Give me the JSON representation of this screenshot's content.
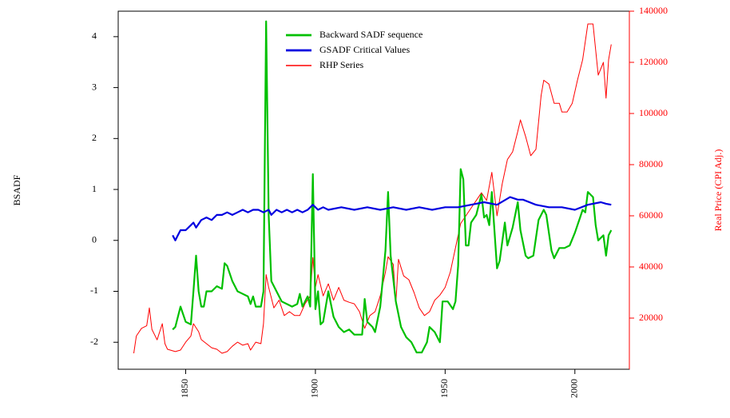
{
  "chart_data": {
    "type": "line",
    "y_label": "BSADF",
    "y2_label": "Real Price (CPI Adj.)",
    "xlim": [
      1824,
      2021
    ],
    "xticks": [
      1850,
      1900,
      1950,
      2000
    ],
    "ylim": [
      -2.53,
      4.5
    ],
    "yticks": [
      -2,
      -1,
      0,
      1,
      2,
      3,
      4
    ],
    "y2lim": [
      0,
      140000
    ],
    "y2ticks": [
      20000,
      40000,
      60000,
      80000,
      100000,
      120000,
      140000
    ],
    "y2color": "#ff0000",
    "legend": "top",
    "series": [
      {
        "name": "Backward SADF sequence",
        "color": "#00c000",
        "width": 2.2,
        "x": [
          1845,
          1846,
          1848,
          1850,
          1852,
          1853,
          1854,
          1855,
          1856,
          1857,
          1858,
          1860,
          1862,
          1864,
          1865,
          1866,
          1868,
          1870,
          1872,
          1874,
          1875,
          1876,
          1877,
          1879,
          1880,
          1881,
          1882,
          1883,
          1885,
          1887,
          1889,
          1891,
          1893,
          1894,
          1895,
          1897,
          1898,
          1899,
          1900,
          1901,
          1902,
          1903,
          1905,
          1907,
          1909,
          1911,
          1913,
          1915,
          1917,
          1918,
          1919,
          1920,
          1922,
          1923,
          1925,
          1927,
          1928,
          1929,
          1931,
          1933,
          1935,
          1937,
          1939,
          1941,
          1943,
          1944,
          1946,
          1948,
          1949,
          1951,
          1953,
          1954,
          1955,
          1956,
          1957,
          1958,
          1959,
          1960,
          1962,
          1964,
          1965,
          1966,
          1967,
          1968,
          1970,
          1971,
          1973,
          1974,
          1976,
          1978,
          1979,
          1981,
          1982,
          1984,
          1986,
          1988,
          1989,
          1991,
          1992,
          1994,
          1996,
          1998,
          2000,
          2002,
          2003,
          2004,
          2005,
          2007,
          2008,
          2009,
          2011,
          2012,
          2013,
          2014
        ],
        "values": [
          -1.75,
          -1.7,
          -1.3,
          -1.6,
          -1.65,
          -1.0,
          -0.3,
          -1.0,
          -1.3,
          -1.3,
          -1.0,
          -1.0,
          -0.9,
          -0.95,
          -0.45,
          -0.5,
          -0.8,
          -1.0,
          -1.05,
          -1.1,
          -1.25,
          -1.1,
          -1.3,
          -1.3,
          -1.0,
          4.3,
          0.5,
          -0.8,
          -1.0,
          -1.2,
          -1.25,
          -1.3,
          -1.25,
          -1.05,
          -1.3,
          -1.1,
          -1.3,
          1.3,
          -1.35,
          -1.0,
          -1.65,
          -1.6,
          -1.0,
          -1.5,
          -1.7,
          -1.8,
          -1.75,
          -1.85,
          -1.85,
          -1.85,
          -1.15,
          -1.6,
          -1.7,
          -1.8,
          -1.3,
          -0.2,
          0.95,
          -0.3,
          -1.2,
          -1.7,
          -1.9,
          -2.0,
          -2.2,
          -2.2,
          -2.0,
          -1.7,
          -1.8,
          -2.0,
          -1.2,
          -1.2,
          -1.35,
          -1.2,
          -0.5,
          1.4,
          1.2,
          -0.1,
          -0.1,
          0.35,
          0.5,
          0.9,
          0.45,
          0.5,
          0.3,
          0.95,
          -0.55,
          -0.4,
          0.35,
          -0.1,
          0.25,
          0.75,
          0.2,
          -0.3,
          -0.35,
          -0.3,
          0.4,
          0.6,
          0.5,
          -0.2,
          -0.35,
          -0.15,
          -0.15,
          -0.1,
          0.15,
          0.45,
          0.6,
          0.55,
          0.95,
          0.85,
          0.3,
          0.0,
          0.1,
          -0.3,
          0.1,
          0.2
        ]
      },
      {
        "name": "GSADF Critical Values",
        "color": "#0000e0",
        "width": 2.2,
        "x": [
          1845,
          1846,
          1847,
          1848,
          1850,
          1852,
          1853,
          1854,
          1856,
          1858,
          1860,
          1862,
          1864,
          1866,
          1868,
          1870,
          1872,
          1874,
          1876,
          1878,
          1880,
          1882,
          1883,
          1885,
          1887,
          1889,
          1891,
          1893,
          1895,
          1897,
          1899,
          1901,
          1903,
          1905,
          1910,
          1915,
          1920,
          1925,
          1930,
          1935,
          1940,
          1945,
          1950,
          1955,
          1960,
          1965,
          1970,
          1975,
          1978,
          1980,
          1985,
          1990,
          1995,
          2000,
          2005,
          2010,
          2012,
          2014
        ],
        "values": [
          0.1,
          0.0,
          0.1,
          0.2,
          0.2,
          0.3,
          0.35,
          0.25,
          0.4,
          0.45,
          0.4,
          0.5,
          0.5,
          0.55,
          0.5,
          0.55,
          0.6,
          0.55,
          0.6,
          0.6,
          0.55,
          0.6,
          0.5,
          0.6,
          0.55,
          0.6,
          0.55,
          0.6,
          0.55,
          0.6,
          0.7,
          0.6,
          0.65,
          0.6,
          0.65,
          0.6,
          0.65,
          0.6,
          0.65,
          0.6,
          0.65,
          0.6,
          0.65,
          0.65,
          0.7,
          0.75,
          0.7,
          0.85,
          0.8,
          0.8,
          0.7,
          0.65,
          0.65,
          0.6,
          0.7,
          0.75,
          0.72,
          0.7
        ]
      },
      {
        "name": "RHP Series",
        "color": "#ff0000",
        "width": 1,
        "axis": "y2",
        "x": [
          1830,
          1831,
          1833,
          1835,
          1836,
          1837,
          1839,
          1841,
          1842,
          1843,
          1846,
          1848,
          1850,
          1852,
          1853,
          1855,
          1856,
          1858,
          1860,
          1862,
          1864,
          1866,
          1868,
          1870,
          1872,
          1874,
          1875,
          1877,
          1879,
          1880,
          1881,
          1882,
          1884,
          1886,
          1888,
          1890,
          1892,
          1894,
          1896,
          1898,
          1899,
          1900,
          1901,
          1903,
          1905,
          1907,
          1909,
          1911,
          1913,
          1915,
          1917,
          1919,
          1921,
          1923,
          1925,
          1927,
          1928,
          1930,
          1931,
          1932,
          1934,
          1936,
          1938,
          1940,
          1942,
          1944,
          1946,
          1948,
          1950,
          1952,
          1954,
          1956,
          1958,
          1960,
          1962,
          1964,
          1966,
          1968,
          1970,
          1972,
          1974,
          1976,
          1978,
          1979,
          1981,
          1983,
          1985,
          1987,
          1988,
          1990,
          1992,
          1994,
          1995,
          1997,
          1999,
          2001,
          2003,
          2005,
          2007,
          2009,
          2011,
          2012,
          2013,
          2014
        ],
        "values": [
          6250,
          13000,
          16000,
          17000,
          24000,
          15600,
          11500,
          17800,
          10000,
          7800,
          6900,
          7500,
          10600,
          13000,
          17800,
          14700,
          11600,
          10000,
          8400,
          7800,
          6250,
          6900,
          9000,
          10600,
          9400,
          10000,
          7500,
          10600,
          10000,
          17800,
          37000,
          32000,
          24000,
          27000,
          21000,
          22500,
          21000,
          21000,
          25600,
          28700,
          43700,
          32000,
          37000,
          28700,
          33400,
          27000,
          32000,
          27000,
          26200,
          25600,
          22500,
          16000,
          21000,
          22500,
          28700,
          38000,
          44000,
          41000,
          25600,
          43000,
          36500,
          35000,
          30000,
          24000,
          21000,
          22500,
          27000,
          29000,
          32000,
          38000,
          47500,
          57000,
          60000,
          63000,
          66000,
          69000,
          66000,
          77000,
          60000,
          72500,
          82000,
          85000,
          93000,
          97500,
          91000,
          83500,
          86000,
          107000,
          113000,
          111500,
          104000,
          104000,
          100600,
          100600,
          104000,
          113000,
          121000,
          135000,
          135000,
          115000,
          120000,
          106000,
          121000,
          127000
        ]
      }
    ]
  }
}
